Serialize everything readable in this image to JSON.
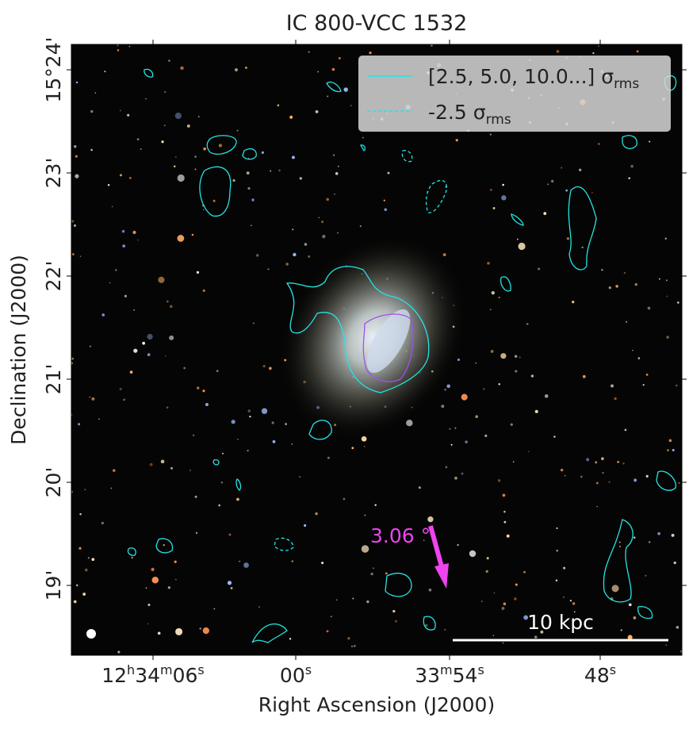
{
  "title": "IC 800-VCC 1532",
  "x_axis": {
    "label": "Right Ascension (J2000)",
    "ticks": [
      [
        {
          "t": "12",
          "s": "h"
        },
        {
          "t": "34",
          "s": "m"
        },
        {
          "t": "06",
          "s": "s"
        }
      ],
      [
        {
          "t": "00",
          "s": "s"
        }
      ],
      [
        {
          "t": "33",
          "s": "m"
        },
        {
          "t": "54",
          "s": "s"
        }
      ],
      [
        {
          "t": "48",
          "s": "s"
        }
      ]
    ]
  },
  "y_axis": {
    "label": "Declination (J2000)",
    "ticks": [
      "15°24'",
      "23'",
      "22'",
      "21'",
      "20'",
      "19'"
    ]
  },
  "legend": [
    {
      "text": "[2.5, 5.0, 10.0...] σ",
      "sub": "rms"
    },
    {
      "text": "-2.5 σ",
      "sub": "rms"
    }
  ],
  "annotation": "3.06 °",
  "scale_bar": "10 kpc"
}
